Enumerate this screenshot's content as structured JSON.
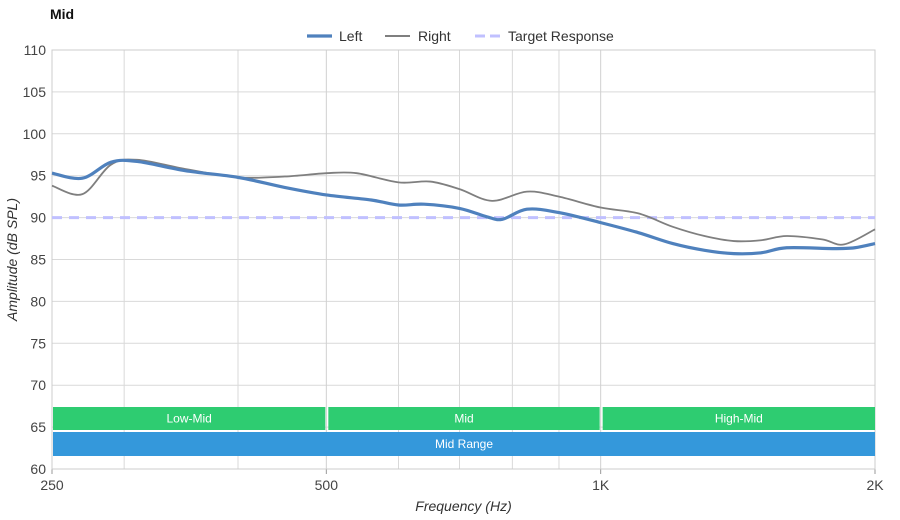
{
  "chart_data": {
    "type": "line",
    "title": "Mid",
    "xlabel": "Frequency (Hz)",
    "ylabel": "Amplitude (dB SPL)",
    "x_scale": "log",
    "xlim": [
      250,
      2000
    ],
    "ylim": [
      60,
      110
    ],
    "x_ticks": [
      250,
      500,
      1000,
      2000
    ],
    "x_tick_labels": [
      "250",
      "500",
      "1K",
      "2K"
    ],
    "y_ticks": [
      60,
      65,
      70,
      75,
      80,
      85,
      90,
      95,
      100,
      105,
      110
    ],
    "x_minor_gridlines": [
      300,
      400,
      600,
      700,
      800,
      900
    ],
    "grid": true,
    "legend_position": "top-center",
    "series": [
      {
        "name": "Left",
        "color": "#4f81bd",
        "style": "solid-thick",
        "points": [
          [
            250,
            95.3
          ],
          [
            270,
            94.7
          ],
          [
            290,
            96.6
          ],
          [
            310,
            96.7
          ],
          [
            350,
            95.6
          ],
          [
            400,
            94.8
          ],
          [
            450,
            93.6
          ],
          [
            500,
            92.7
          ],
          [
            560,
            92.1
          ],
          [
            600,
            91.5
          ],
          [
            640,
            91.6
          ],
          [
            700,
            91.1
          ],
          [
            750,
            90.1
          ],
          [
            780,
            89.8
          ],
          [
            830,
            91.0
          ],
          [
            900,
            90.6
          ],
          [
            1000,
            89.4
          ],
          [
            1100,
            88.2
          ],
          [
            1200,
            86.9
          ],
          [
            1300,
            86.1
          ],
          [
            1400,
            85.7
          ],
          [
            1500,
            85.8
          ],
          [
            1600,
            86.4
          ],
          [
            1800,
            86.3
          ],
          [
            1900,
            86.4
          ],
          [
            2000,
            86.9
          ]
        ]
      },
      {
        "name": "Right",
        "color": "#7f7f7f",
        "style": "solid",
        "points": [
          [
            250,
            93.8
          ],
          [
            270,
            92.8
          ],
          [
            290,
            96.3
          ],
          [
            310,
            96.9
          ],
          [
            350,
            95.8
          ],
          [
            400,
            94.8
          ],
          [
            450,
            94.9
          ],
          [
            500,
            95.3
          ],
          [
            540,
            95.3
          ],
          [
            600,
            94.2
          ],
          [
            650,
            94.3
          ],
          [
            700,
            93.4
          ],
          [
            760,
            92.0
          ],
          [
            830,
            93.1
          ],
          [
            900,
            92.5
          ],
          [
            1000,
            91.2
          ],
          [
            1100,
            90.5
          ],
          [
            1200,
            88.9
          ],
          [
            1300,
            87.8
          ],
          [
            1400,
            87.2
          ],
          [
            1500,
            87.3
          ],
          [
            1600,
            87.8
          ],
          [
            1750,
            87.4
          ],
          [
            1850,
            86.8
          ],
          [
            2000,
            88.6
          ]
        ]
      },
      {
        "name": "Target Response",
        "color": "#c0c0ff",
        "style": "dashed",
        "points": [
          [
            250,
            90
          ],
          [
            2000,
            90
          ]
        ]
      }
    ],
    "bands": [
      {
        "label": "Low-Mid",
        "from": 250,
        "to": 500,
        "row": 1,
        "color": "#2ecc71"
      },
      {
        "label": "Mid",
        "from": 500,
        "to": 1000,
        "row": 1,
        "color": "#2ecc71"
      },
      {
        "label": "High-Mid",
        "from": 1000,
        "to": 2000,
        "row": 1,
        "color": "#2ecc71"
      },
      {
        "label": "Mid Range",
        "from": 250,
        "to": 2000,
        "row": 2,
        "color": "#3498db"
      }
    ]
  }
}
